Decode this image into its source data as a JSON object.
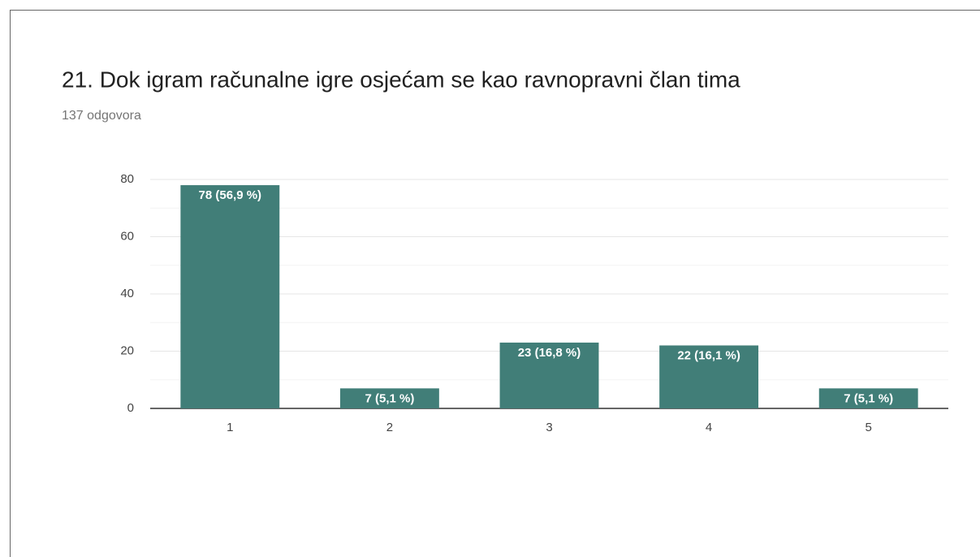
{
  "chart_data": {
    "type": "bar",
    "title": "21. Dok igram računalne igre osjećam se kao ravnopravni član tima",
    "subtitle": "137 odgovora",
    "categories": [
      "1",
      "2",
      "3",
      "4",
      "5"
    ],
    "values": [
      78,
      7,
      23,
      22,
      7
    ],
    "value_labels": [
      "78 (56,9 %)",
      "7 (5,1 %)",
      "23 (16,8 %)",
      "22 (16,1 %)",
      "7 (5,1 %)"
    ],
    "color": "#417e78",
    "ylim": [
      0,
      80
    ],
    "yticks": [
      0,
      20,
      40,
      60,
      80
    ],
    "grid": true
  }
}
